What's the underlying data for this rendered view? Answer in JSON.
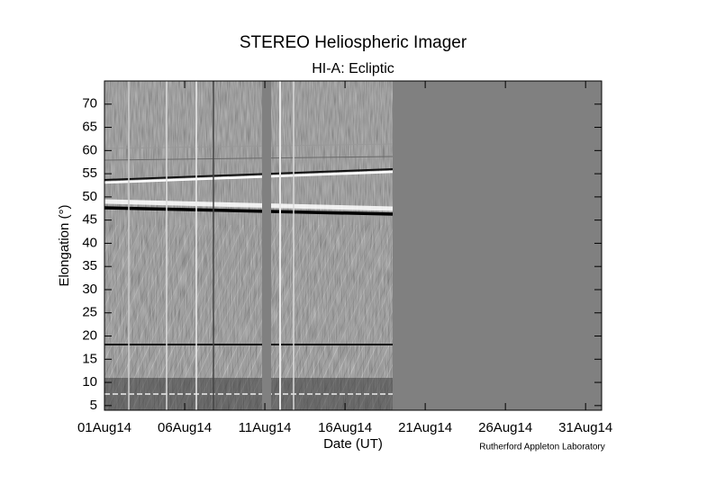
{
  "chart_data": {
    "type": "image",
    "title": "STEREO Heliospheric Imager",
    "subtitle": "HI-A: Ecliptic",
    "x_label": "Date (UT)",
    "y_label": "Elongation (°)",
    "credit": "Rutherford Appleton Laboratory",
    "xlim": [
      1,
      32
    ],
    "xticks": [
      {
        "value": 1,
        "label": "01Aug14"
      },
      {
        "value": 6,
        "label": "06Aug14"
      },
      {
        "value": 11,
        "label": "11Aug14"
      },
      {
        "value": 16,
        "label": "16Aug14"
      },
      {
        "value": 21,
        "label": "21Aug14"
      },
      {
        "value": 26,
        "label": "26Aug14"
      },
      {
        "value": 31,
        "label": "31Aug14"
      }
    ],
    "ylim": [
      4,
      75
    ],
    "yticks": [
      5,
      10,
      15,
      20,
      25,
      30,
      35,
      40,
      45,
      50,
      55,
      60,
      65,
      70
    ]
  }
}
